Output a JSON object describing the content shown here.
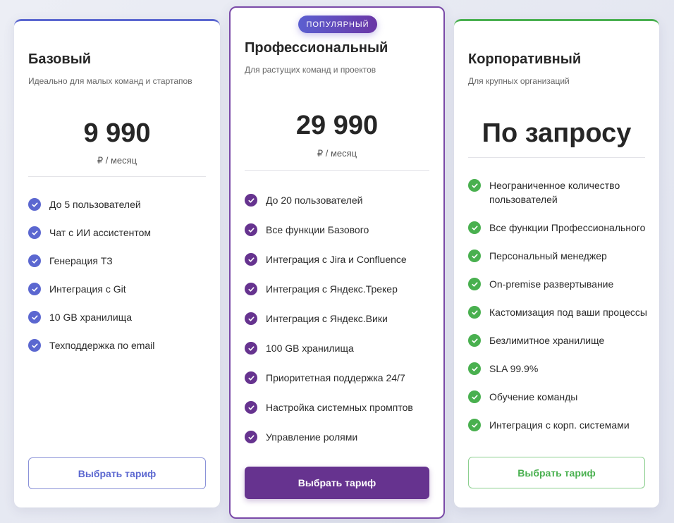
{
  "colors": {
    "basic": "#5b67d0",
    "pro": "#66338f",
    "enterprise": "#49b04f"
  },
  "plans": [
    {
      "title": "Базовый",
      "subtitle": "Идеально для малых команд и стартапов",
      "price": "9 990",
      "period": "₽ / месяц",
      "button": "Выбрать тариф",
      "features": [
        "До 5 пользователей",
        "Чат с ИИ ассистентом",
        "Генерация ТЗ",
        "Интеграция с Git",
        "10 GB хранилища",
        "Техподдержка по email"
      ]
    },
    {
      "badge": "ПОПУЛЯРНЫЙ",
      "title": "Профессиональный",
      "subtitle": "Для растущих команд и проектов",
      "price": "29 990",
      "period": "₽ / месяц",
      "button": "Выбрать тариф",
      "features": [
        "До 20 пользователей",
        "Все функции Базового",
        "Интеграция с Jira и Confluence",
        "Интеграция с Яндекс.Трекер",
        "Интеграция с Яндекс.Вики",
        "100 GB хранилища",
        "Приоритетная поддержка 24/7",
        "Настройка системных промптов",
        "Управление ролями"
      ]
    },
    {
      "title": "Корпоративный",
      "subtitle": "Для крупных организаций",
      "price": "По запросу",
      "button": "Выбрать тариф",
      "features": [
        "Неограниченное количество пользователей",
        "Все функции Профессионального",
        "Персональный менеджер",
        "On-premise развертывание",
        "Кастомизация под ваши процессы",
        "Безлимитное хранилище",
        "SLA 99.9%",
        "Обучение команды",
        "Интеграция с корп. системами"
      ]
    }
  ]
}
